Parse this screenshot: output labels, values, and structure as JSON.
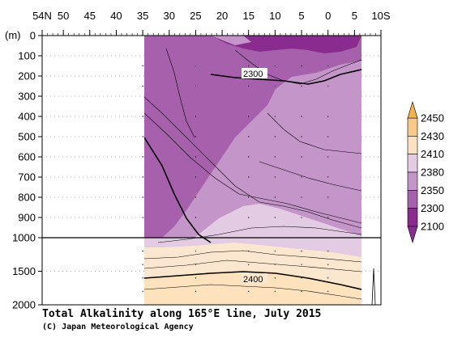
{
  "chart_data": {
    "type": "heatmap",
    "title": "Total Alkalinity along 165°E line, July 2015",
    "credit": "(C) Japan Meteorological Agency",
    "xlabel": "",
    "ylabel": "(m)",
    "x_tick_labels": [
      "54N",
      "50",
      "45",
      "40",
      "35",
      "30",
      "25",
      "20",
      "15",
      "10",
      "5",
      "0",
      "5",
      "10S"
    ],
    "x_ticks": [
      54,
      50,
      45,
      40,
      35,
      30,
      25,
      20,
      15,
      10,
      5,
      0,
      -5,
      -10
    ],
    "xlim": [
      54,
      -10
    ],
    "y_tick_labels": [
      "0",
      "100",
      "200",
      "300",
      "400",
      "500",
      "600",
      "700",
      "800",
      "900",
      "1000",
      "1500",
      "2000"
    ],
    "y_ticks": [
      0,
      100,
      200,
      300,
      400,
      500,
      600,
      700,
      800,
      900,
      1000,
      1500,
      2000
    ],
    "ylim": [
      0,
      2000
    ],
    "y_break": 1000,
    "data_range_lat": [
      35,
      -5
    ],
    "contour_labels": [
      {
        "text": "2300",
        "lat": 18,
        "depth": 185
      },
      {
        "text": "2400",
        "lat": 17,
        "depth": 1600
      }
    ],
    "colorbar": {
      "levels": [
        "2450",
        "2430",
        "2410",
        "2380",
        "2350",
        "2300",
        "2100"
      ],
      "colors": [
        "#f5b04f",
        "#f8c989",
        "#fbe1c2",
        "#e4cbe4",
        "#c495c8",
        "#a660ac",
        "#8a2c8f"
      ]
    },
    "colors": {
      "band_lt2300": "#a660ac",
      "band_2300_2350": "#c495c8",
      "band_2350_2380": "#e4cbe4",
      "band_2380_2410": "#fbe7cf",
      "band_2410_2430": "#fde2bd",
      "surface_dark": "#8a2c8f"
    }
  }
}
